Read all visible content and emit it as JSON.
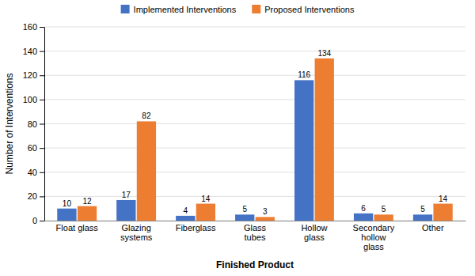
{
  "chart_data": {
    "type": "bar",
    "categories": [
      "Float glass",
      "Glazing\nsystems",
      "Fiberglass",
      "Glass\ntubes",
      "Hollow\nglass",
      "Secondary\nhollow\nglass",
      "Other"
    ],
    "series": [
      {
        "name": "Implemented Interventions",
        "color": "#4472C4",
        "values": [
          10,
          17,
          4,
          5,
          116,
          6,
          5
        ]
      },
      {
        "name": "Proposed Interventions",
        "color": "#ED7D31",
        "values": [
          12,
          82,
          14,
          3,
          134,
          5,
          14
        ]
      }
    ],
    "xlabel": "Finished Product",
    "ylabel": "Number of Interventions",
    "ylim": [
      0,
      160
    ],
    "yticks": [
      0,
      20,
      40,
      60,
      80,
      100,
      120,
      140,
      160
    ],
    "grid": true,
    "legend": "top",
    "data_labels": true
  }
}
